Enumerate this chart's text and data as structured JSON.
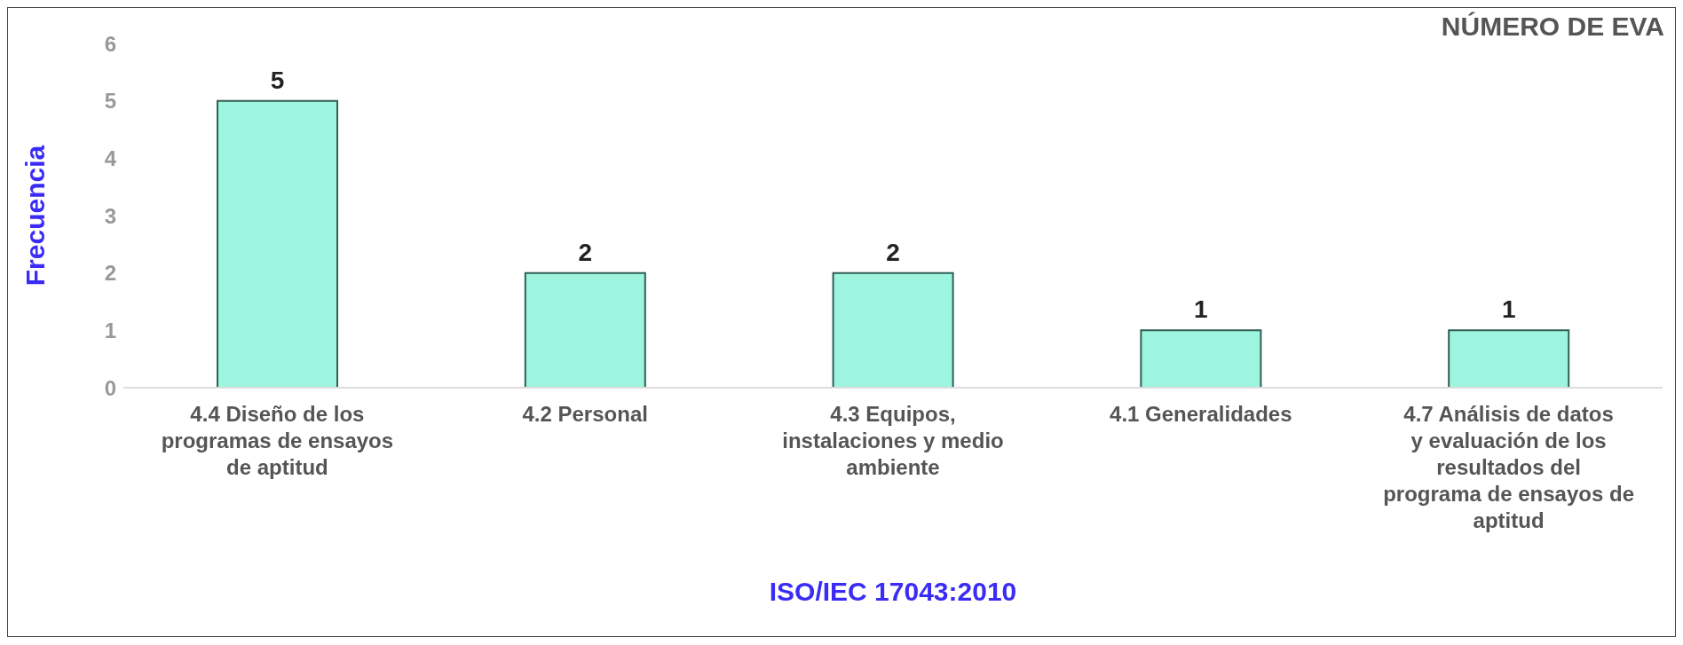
{
  "chart_data": {
    "type": "bar",
    "title": "NÚMERO DE EVA",
    "xlabel": "ISO/IEC 17043:2010",
    "ylabel": "Frecuencia",
    "categories": [
      "4.4 Diseño de los programas de ensayos de aptitud",
      "4.2 Personal",
      "4.3 Equipos, instalaciones y medio ambiente",
      "4.1 Generalidades",
      "4.7 Análisis de datos y evaluación de los resultados del programa de ensayos de aptitud"
    ],
    "values": [
      5,
      2,
      2,
      1,
      1
    ],
    "color": "#9ef5df",
    "ylim": [
      0,
      6
    ],
    "yticks": [
      0,
      1,
      2,
      3,
      4,
      5,
      6
    ],
    "grid": false,
    "legend": false,
    "data_labels": true
  }
}
